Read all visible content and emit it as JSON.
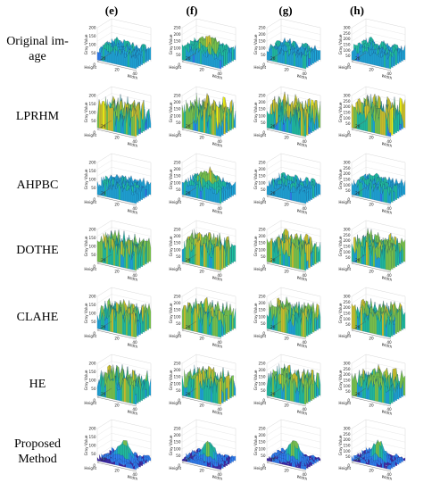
{
  "columns": [
    "(e)",
    "(f)",
    "(g)",
    "(h)"
  ],
  "rows": [
    "Original im-\nage",
    "LPRHM",
    "AHPBC",
    "DOTHE",
    "CLAHE",
    "HE",
    "Proposed\nMethod"
  ],
  "axis_labels": {
    "z": "Gray Value",
    "x": "Width",
    "y": "Height"
  },
  "tick_labels": {
    "e": {
      "z": [
        "200",
        "150",
        "100",
        "50"
      ],
      "x": [
        "20",
        "40"
      ],
      "y": [
        "0",
        "20"
      ]
    },
    "f": {
      "z": [
        "250",
        "200",
        "150",
        "100",
        "50"
      ],
      "x": [
        "20",
        "40"
      ],
      "y": [
        "0",
        "20"
      ]
    },
    "g": {
      "z": [
        "250",
        "200",
        "150",
        "100",
        "50"
      ],
      "x": [
        "20",
        "40"
      ],
      "y": [
        "0",
        "20"
      ]
    },
    "h": {
      "z": [
        "300",
        "250",
        "200",
        "150",
        "100",
        "50"
      ],
      "x": [
        "20",
        "40"
      ],
      "y": [
        "0",
        "20"
      ]
    }
  },
  "colors": {
    "colormap": [
      "#3e26a8",
      "#2f7ef0",
      "#1fa6d8",
      "#20bfa0",
      "#7cc84a",
      "#d1c52a",
      "#f9fb0e"
    ],
    "grid": "#d8d8d8",
    "axis": "#555555"
  }
}
